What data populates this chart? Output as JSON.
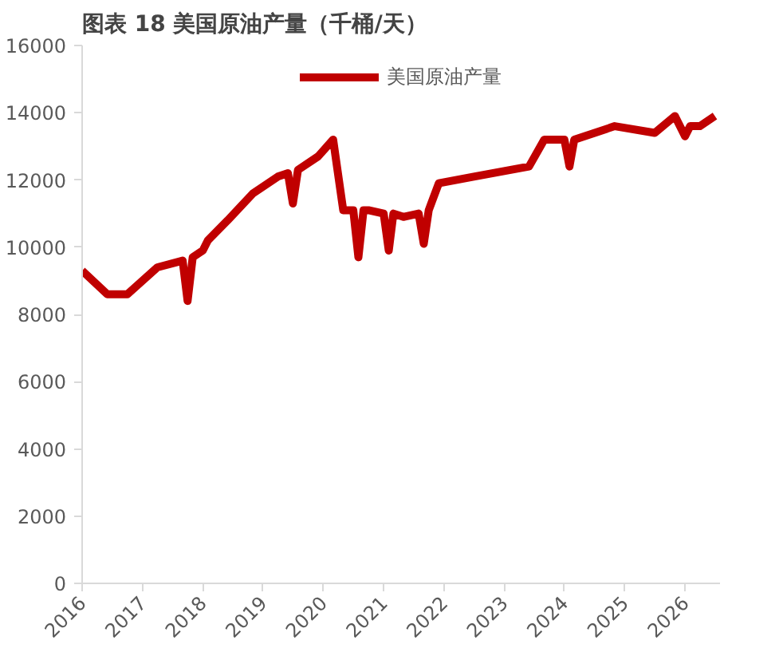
{
  "chart_data": {
    "type": "line",
    "title": "图表 18 美国原油产量（千桶/天）",
    "x": [
      "2016-01",
      "2016-06",
      "2016-10",
      "2017-04",
      "2017-09",
      "2017-10",
      "2017-11",
      "2018-01",
      "2018-02",
      "2018-06",
      "2018-11",
      "2019-04",
      "2019-06",
      "2019-07",
      "2019-08",
      "2019-12",
      "2020-03",
      "2020-05",
      "2020-07",
      "2020-08",
      "2020-09",
      "2020-10",
      "2021-01",
      "2021-02",
      "2021-03",
      "2021-05",
      "2021-08",
      "2021-09",
      "2021-10",
      "2021-12",
      "2022-07",
      "2023-06",
      "2023-09",
      "2024-01",
      "2024-02",
      "2024-03",
      "2024-11",
      "2025-07",
      "2025-11",
      "2026-01",
      "2026-02",
      "2026-04",
      "2026-07"
    ],
    "series": [
      {
        "name": "美国原油产量",
        "color": "#c00000",
        "values": [
          9300,
          8600,
          8600,
          9400,
          9600,
          8400,
          9700,
          9900,
          10200,
          10800,
          11600,
          12100,
          12200,
          11300,
          12300,
          12700,
          13200,
          11100,
          11100,
          9700,
          11100,
          11100,
          11000,
          9900,
          11000,
          10900,
          11000,
          10100,
          11100,
          11900,
          12100,
          12400,
          13200,
          13200,
          12400,
          13200,
          13600,
          13400,
          13900,
          13300,
          13600,
          13600,
          13900
        ]
      }
    ],
    "xlim": [
      "2016-01",
      "2026-08"
    ],
    "xticks": [
      {
        "value": "2016-01",
        "label": "2016"
      },
      {
        "value": "2017-01",
        "label": "2017"
      },
      {
        "value": "2018-01",
        "label": "2018"
      },
      {
        "value": "2019-01",
        "label": "2019"
      },
      {
        "value": "2020-01",
        "label": "2020"
      },
      {
        "value": "2021-01",
        "label": "2021"
      },
      {
        "value": "2022-01",
        "label": "2022"
      },
      {
        "value": "2023-01",
        "label": "2023"
      },
      {
        "value": "2024-01",
        "label": "2024"
      },
      {
        "value": "2025-01",
        "label": "2025"
      },
      {
        "value": "2026-01",
        "label": "2026"
      }
    ],
    "ylim": [
      0,
      16000
    ],
    "yticks": [
      0,
      2000,
      4000,
      6000,
      8000,
      10000,
      12000,
      14000,
      16000
    ],
    "grid": false,
    "legend": "top",
    "line_style": "solid"
  }
}
